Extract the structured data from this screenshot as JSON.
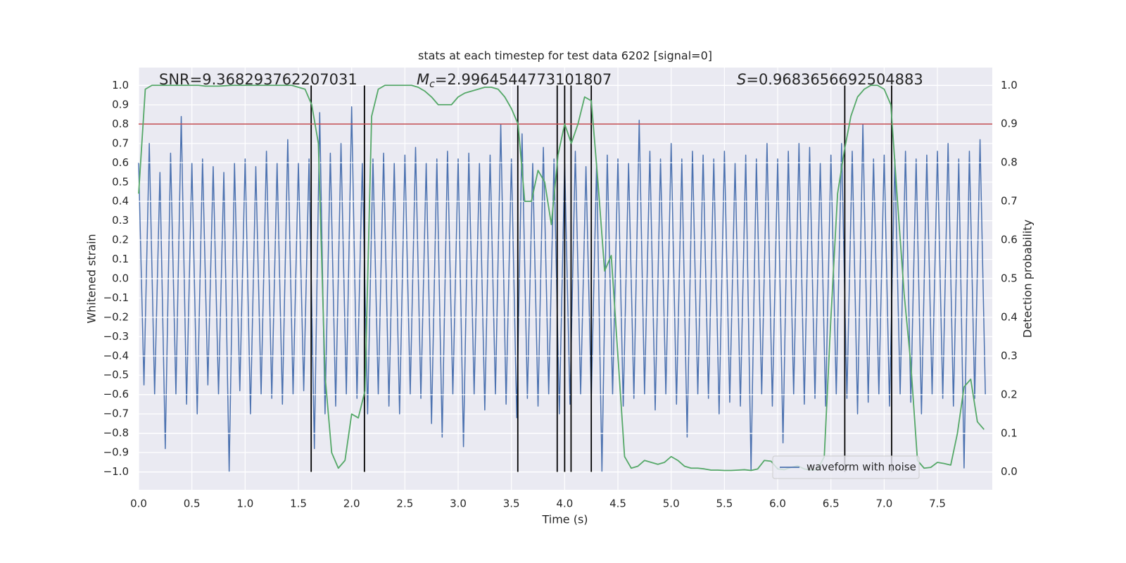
{
  "chart_data": {
    "type": "line",
    "title": "stats at each timestep for test data 6202 [signal=0]",
    "xlabel": "Time (s)",
    "ylabel": "Whitened strain",
    "y2label": "Detection probability",
    "xlim": [
      0,
      8.015
    ],
    "xticks": [
      {
        "value": 0,
        "label": "0.0"
      },
      0.5,
      {
        "value": 1,
        "label": "1.0"
      },
      1.5,
      {
        "value": 2,
        "label": "2.0"
      },
      2.5,
      {
        "value": 3,
        "label": "3.0"
      },
      3.5,
      {
        "value": 4,
        "label": "4.0"
      },
      4.5,
      {
        "value": 5,
        "label": "5.0"
      },
      5.5,
      {
        "value": 6,
        "label": "6.0"
      },
      6.5,
      {
        "value": 7,
        "label": "7.0"
      },
      7.5
    ],
    "ylim": [
      -1.093,
      1.093
    ],
    "yticks": [
      {
        "value": -1,
        "label": "−1.0"
      },
      {
        "value": -0.9,
        "label": "−0.9"
      },
      {
        "value": -0.8,
        "label": "−0.8"
      },
      {
        "value": -0.7,
        "label": "−0.7"
      },
      {
        "value": -0.6,
        "label": "−0.6"
      },
      {
        "value": -0.5,
        "label": "−0.5"
      },
      {
        "value": -0.4,
        "label": "−0.4"
      },
      {
        "value": -0.3,
        "label": "−0.3"
      },
      {
        "value": -0.2,
        "label": "−0.2"
      },
      {
        "value": -0.1,
        "label": "−0.1"
      },
      {
        "value": 0,
        "label": "0.0"
      },
      0.1,
      0.2,
      0.3,
      0.4,
      0.5,
      0.6,
      0.7,
      0.8,
      0.9,
      {
        "value": 1,
        "label": "1.0"
      }
    ],
    "y2lim": [
      -0.046,
      1.046
    ],
    "y2ticks": [
      {
        "value": 0,
        "label": "0.0"
      },
      0.1,
      0.2,
      0.3,
      0.4,
      0.5,
      0.6,
      0.7,
      0.8,
      0.9,
      {
        "value": 1,
        "label": "1.0"
      }
    ],
    "grid": true,
    "legend": "lower right",
    "annotations": [
      {
        "text": "SNR=9.368293762207031"
      },
      {
        "symbol": "M",
        "subscript": "c",
        "text": "=2.9964544773101807"
      },
      {
        "symbol": "S",
        "text": "=0.9683656692504883"
      }
    ],
    "series": [
      {
        "name": "waveform with noise",
        "color": "#4c72b0",
        "x": [
          0,
          0.05,
          0.1,
          0.15,
          0.2,
          0.25,
          0.3,
          0.35,
          0.4,
          0.45,
          0.5,
          0.55,
          0.6,
          0.65,
          0.7,
          0.75,
          0.8,
          0.85,
          0.9,
          0.95,
          1.0,
          1.05,
          1.1,
          1.15,
          1.2,
          1.25,
          1.3,
          1.35,
          1.4,
          1.45,
          1.5,
          1.55,
          1.6,
          1.65,
          1.7,
          1.75,
          1.8,
          1.85,
          1.9,
          1.95,
          2.0,
          2.05,
          2.1,
          2.15,
          2.2,
          2.25,
          2.3,
          2.35,
          2.4,
          2.45,
          2.5,
          2.55,
          2.6,
          2.65,
          2.7,
          2.75,
          2.8,
          2.85,
          2.9,
          2.95,
          3.0,
          3.05,
          3.1,
          3.15,
          3.2,
          3.25,
          3.3,
          3.35,
          3.4,
          3.45,
          3.5,
          3.55,
          3.6,
          3.65,
          3.7,
          3.75,
          3.8,
          3.85,
          3.9,
          3.95,
          4.0,
          4.05,
          4.1,
          4.15,
          4.2,
          4.25,
          4.3,
          4.35,
          4.4,
          4.45,
          4.5,
          4.55,
          4.6,
          4.65,
          4.7,
          4.75,
          4.8,
          4.85,
          4.9,
          4.95,
          5.0,
          5.05,
          5.1,
          5.15,
          5.2,
          5.25,
          5.3,
          5.35,
          5.4,
          5.45,
          5.5,
          5.55,
          5.6,
          5.65,
          5.7,
          5.75,
          5.8,
          5.85,
          5.9,
          5.95,
          6.0,
          6.05,
          6.1,
          6.15,
          6.2,
          6.25,
          6.3,
          6.35,
          6.4,
          6.45,
          6.5,
          6.55,
          6.6,
          6.65,
          6.7,
          6.75,
          6.8,
          6.85,
          6.9,
          6.95,
          7.0,
          7.05,
          7.1,
          7.15,
          7.2,
          7.25,
          7.3,
          7.35,
          7.4,
          7.45,
          7.5,
          7.55,
          7.6,
          7.65,
          7.7,
          7.75,
          7.8,
          7.85,
          7.9,
          7.95
        ],
        "values": [
          0.6,
          -0.55,
          0.7,
          -0.6,
          0.55,
          -0.88,
          0.65,
          -0.6,
          0.84,
          -0.65,
          0.6,
          -0.7,
          0.62,
          -0.55,
          0.58,
          -0.6,
          0.55,
          -1.0,
          0.6,
          -0.58,
          0.62,
          -0.7,
          0.58,
          -0.6,
          0.66,
          -0.62,
          0.6,
          -0.65,
          0.72,
          -0.6,
          0.6,
          -0.58,
          0.62,
          -0.88,
          0.86,
          -0.7,
          0.65,
          -0.66,
          0.7,
          -0.6,
          0.89,
          -0.62,
          0.6,
          -0.7,
          0.62,
          -0.6,
          0.65,
          -0.66,
          0.6,
          -0.7,
          0.64,
          -0.6,
          0.68,
          -0.62,
          0.6,
          -0.75,
          0.62,
          -0.82,
          0.66,
          -0.6,
          0.62,
          -0.87,
          0.65,
          -0.6,
          0.6,
          -0.68,
          0.64,
          -0.6,
          0.8,
          -0.65,
          0.62,
          -0.72,
          0.75,
          -0.62,
          0.6,
          -0.66,
          0.68,
          -0.6,
          0.62,
          -0.7,
          0.6,
          -0.65,
          0.66,
          -0.6,
          0.58,
          -0.62,
          0.6,
          -1.0,
          0.64,
          -0.6,
          0.62,
          -0.66,
          0.6,
          -0.62,
          0.82,
          -0.6,
          0.66,
          -0.68,
          0.62,
          -0.6,
          0.7,
          -0.65,
          0.62,
          -0.82,
          0.66,
          -0.6,
          0.64,
          -0.62,
          0.62,
          -0.7,
          0.66,
          -0.64,
          0.6,
          -0.66,
          0.64,
          -0.99,
          0.62,
          -0.6,
          0.7,
          -0.66,
          0.62,
          -0.85,
          0.66,
          -0.6,
          0.7,
          -0.65,
          0.68,
          -0.62,
          0.6,
          -0.66,
          0.64,
          -0.6,
          0.7,
          -0.62,
          0.66,
          -0.7,
          0.8,
          -0.64,
          0.62,
          -0.6,
          0.64,
          -0.66,
          0.62,
          -0.6,
          0.66,
          -0.64,
          0.62,
          -0.7,
          0.64,
          -0.6,
          0.66,
          -0.62,
          0.7,
          -0.66,
          0.62,
          -0.98,
          0.66,
          -0.62,
          0.72,
          -0.6
        ]
      },
      {
        "color": "#55a868",
        "axis": "y2",
        "x": [
          0,
          0.0625,
          0.125,
          0.1875,
          0.25,
          0.3125,
          0.375,
          0.4375,
          0.5,
          0.5625,
          0.625,
          0.6875,
          0.75,
          0.8125,
          0.875,
          0.9375,
          1.0,
          1.0625,
          1.125,
          1.1875,
          1.25,
          1.3125,
          1.375,
          1.4375,
          1.5,
          1.5625,
          1.625,
          1.6875,
          1.75,
          1.8125,
          1.875,
          1.9375,
          2.0,
          2.0625,
          2.125,
          2.1875,
          2.25,
          2.3125,
          2.375,
          2.4375,
          2.5,
          2.5625,
          2.625,
          2.6875,
          2.75,
          2.8125,
          2.875,
          2.9375,
          3.0,
          3.0625,
          3.125,
          3.1875,
          3.25,
          3.3125,
          3.375,
          3.4375,
          3.5,
          3.5625,
          3.625,
          3.6875,
          3.75,
          3.8125,
          3.875,
          3.9375,
          4.0,
          4.0625,
          4.125,
          4.1875,
          4.25,
          4.3125,
          4.375,
          4.4375,
          4.5,
          4.5625,
          4.625,
          4.6875,
          4.75,
          4.8125,
          4.875,
          4.9375,
          5.0,
          5.0625,
          5.125,
          5.1875,
          5.25,
          5.3125,
          5.375,
          5.4375,
          5.5,
          5.5625,
          5.625,
          5.6875,
          5.75,
          5.8125,
          5.875,
          5.9375,
          6.0,
          6.0625,
          6.125,
          6.1875,
          6.25,
          6.3125,
          6.375,
          6.4375,
          6.5,
          6.5625,
          6.625,
          6.6875,
          6.75,
          6.8125,
          6.875,
          6.9375,
          7.0,
          7.0625,
          7.125,
          7.1875,
          7.25,
          7.3125,
          7.375,
          7.4375,
          7.5,
          7.5625,
          7.625,
          7.6875,
          7.75,
          7.8125,
          7.875,
          7.9375
        ],
        "values": [
          0.72,
          0.99,
          1.0,
          1.0,
          1.0,
          1.0,
          1.0,
          1.0,
          1.0,
          1.0,
          0.998,
          0.998,
          0.998,
          0.999,
          1.0,
          1.0,
          1.0,
          1.0,
          1.0,
          1.0,
          1.0,
          1.0,
          1.0,
          1.0,
          0.995,
          0.99,
          0.95,
          0.85,
          0.25,
          0.05,
          0.01,
          0.03,
          0.15,
          0.14,
          0.21,
          0.92,
          0.99,
          1.0,
          1.0,
          1.0,
          1.0,
          1.0,
          0.995,
          0.985,
          0.97,
          0.95,
          0.95,
          0.95,
          0.97,
          0.98,
          0.985,
          0.99,
          0.995,
          0.995,
          0.99,
          0.97,
          0.94,
          0.9,
          0.7,
          0.7,
          0.78,
          0.75,
          0.64,
          0.82,
          0.9,
          0.85,
          0.9,
          0.97,
          0.96,
          0.75,
          0.52,
          0.56,
          0.3,
          0.04,
          0.01,
          0.015,
          0.03,
          0.025,
          0.02,
          0.025,
          0.04,
          0.03,
          0.015,
          0.01,
          0.01,
          0.008,
          0.005,
          0.005,
          0.004,
          0.004,
          0.005,
          0.006,
          0.004,
          0.008,
          0.03,
          0.028,
          0.008,
          0.006,
          0.012,
          0.016,
          0.008,
          0.005,
          0.006,
          0.04,
          0.4,
          0.72,
          0.83,
          0.92,
          0.97,
          0.99,
          1.0,
          1.0,
          0.99,
          0.95,
          0.7,
          0.46,
          0.28,
          0.03,
          0.01,
          0.012,
          0.025,
          0.022,
          0.018,
          0.1,
          0.22,
          0.24,
          0.13,
          0.11
        ]
      }
    ],
    "hline": {
      "value": 0.9,
      "axis": "y2",
      "color": "#c44e52"
    },
    "vlines": {
      "x": [
        1.62,
        2.12,
        3.56,
        3.93,
        4.0,
        4.06,
        4.25,
        6.63,
        7.07
      ],
      "ymin": -1,
      "ymax": 1,
      "color": "#000000"
    }
  }
}
